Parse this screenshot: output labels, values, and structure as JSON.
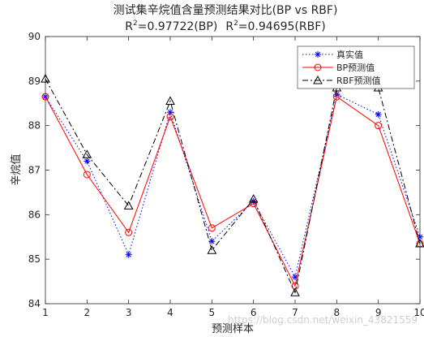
{
  "chart_data": {
    "type": "line",
    "title": "测试集辛烷值含量预测结果对比(BP vs RBF)",
    "subtitle": {
      "bp_prefix": "R",
      "bp_sup": "2",
      "bp_rest": "=0.97722(BP)",
      "rbf_prefix": "R",
      "rbf_sup": "2",
      "rbf_rest": "=0.94695(RBF)"
    },
    "xlabel": "预测样本",
    "ylabel": "辛烷值",
    "x": [
      1,
      2,
      3,
      4,
      5,
      6,
      7,
      8,
      9,
      10
    ],
    "xlim": [
      1,
      10
    ],
    "ylim": [
      84,
      90
    ],
    "xticks": [
      1,
      2,
      3,
      4,
      5,
      6,
      7,
      8,
      9,
      10
    ],
    "yticks": [
      84,
      85,
      86,
      87,
      88,
      89,
      90
    ],
    "grid": false,
    "legend_position": "top-right",
    "series": [
      {
        "name": "真实值",
        "values": [
          88.65,
          87.2,
          85.1,
          88.3,
          85.4,
          86.3,
          84.6,
          88.7,
          88.25,
          85.5
        ],
        "color": "#0000ff",
        "dash": "1.5 2.5",
        "marker": "star"
      },
      {
        "name": "BP预测值",
        "values": [
          88.65,
          86.9,
          85.6,
          88.2,
          85.7,
          86.25,
          84.4,
          88.65,
          88.0,
          85.35
        ],
        "color": "#ff0000",
        "dash": "",
        "marker": "circle"
      },
      {
        "name": "RBF预测值",
        "values": [
          89.05,
          87.35,
          86.2,
          88.55,
          85.2,
          86.35,
          84.25,
          88.85,
          88.85,
          85.35
        ],
        "color": "#000000",
        "dash": "7 3 2 3",
        "marker": "triangle"
      }
    ]
  },
  "watermark": "https://blog.csdn.net/weixin_43821559"
}
